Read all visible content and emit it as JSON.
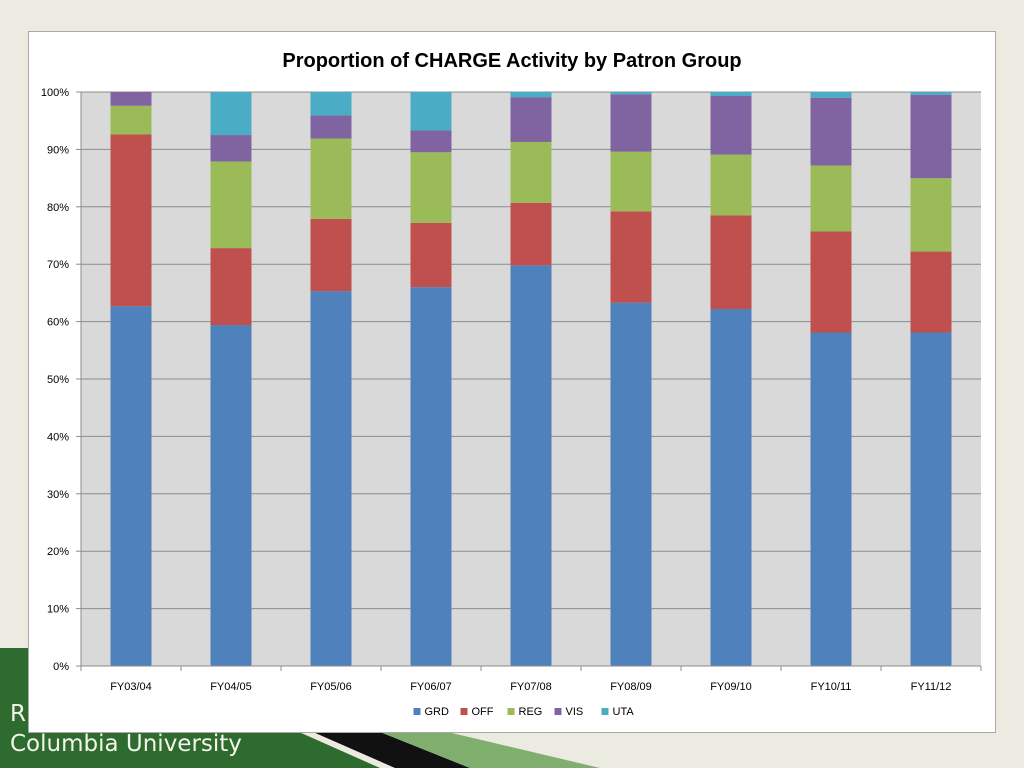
{
  "slide": {
    "footer_line1": "R",
    "footer_line2": "Columbia University",
    "accent_green": "#2e6b2e",
    "background": "#ecebe1"
  },
  "chart_data": {
    "type": "bar",
    "stacked": true,
    "percent_stacked": true,
    "title": "Proportion of CHARGE Activity by Patron Group",
    "xlabel": "",
    "ylabel": "",
    "ylim": [
      0,
      100
    ],
    "yticks": [
      "0%",
      "10%",
      "20%",
      "30%",
      "40%",
      "50%",
      "60%",
      "70%",
      "80%",
      "90%",
      "100%"
    ],
    "grid": true,
    "legend_position": "bottom",
    "categories": [
      "FY03/04",
      "FY04/05",
      "FY05/06",
      "FY06/07",
      "FY07/08",
      "FY08/09",
      "FY09/10",
      "FY10/11",
      "FY11/12"
    ],
    "series": [
      {
        "name": "GRD",
        "color": "#4f81bd",
        "values": [
          62.7,
          59.4,
          65.3,
          66.0,
          69.8,
          63.3,
          62.2,
          58.1,
          58.1
        ]
      },
      {
        "name": "OFF",
        "color": "#c0504d",
        "values": [
          29.9,
          13.4,
          12.6,
          11.2,
          10.9,
          15.9,
          16.3,
          17.6,
          14.1
        ]
      },
      {
        "name": "REG",
        "color": "#9bbb59",
        "values": [
          5.0,
          15.1,
          14.0,
          12.3,
          10.6,
          10.4,
          10.6,
          11.5,
          12.8
        ]
      },
      {
        "name": "VIS",
        "color": "#8064a2",
        "values": [
          2.4,
          4.6,
          4.0,
          3.8,
          7.8,
          10.0,
          10.2,
          11.8,
          14.5
        ]
      },
      {
        "name": "UTA",
        "color": "#4bacc6",
        "values": [
          0.0,
          7.5,
          4.1,
          6.7,
          0.9,
          0.4,
          0.7,
          1.0,
          0.5
        ]
      }
    ]
  }
}
